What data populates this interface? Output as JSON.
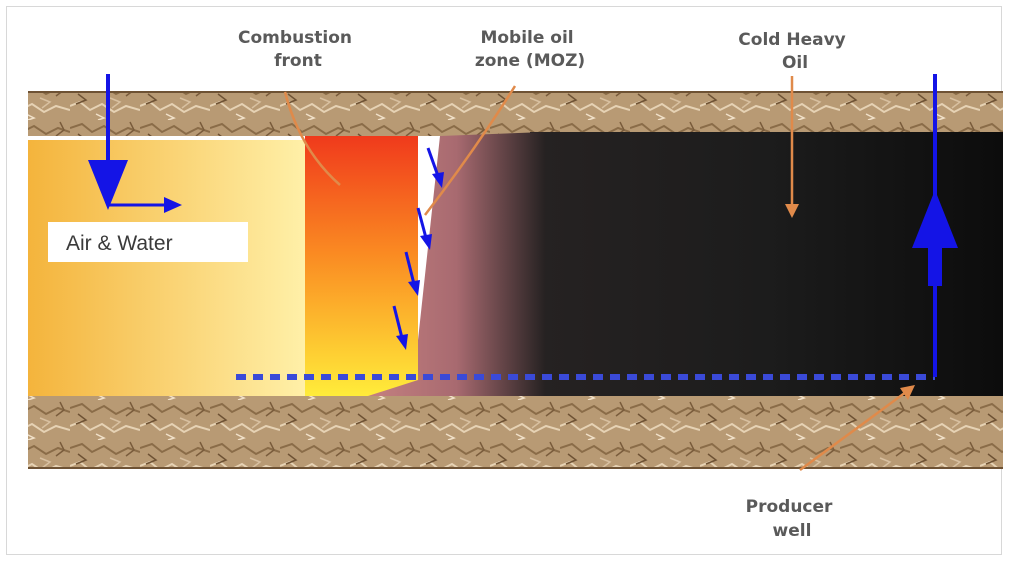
{
  "labels": {
    "combustion_front": [
      "Combustion",
      "front"
    ],
    "mobile_oil_zone": [
      "Mobile oil",
      "zone (MOZ)"
    ],
    "cold_heavy_oil": [
      "Cold Heavy",
      "Oil"
    ],
    "producer_well": [
      "Producer",
      "well"
    ],
    "air_water": "Air & Water"
  },
  "colors": {
    "rock": "#b89a74",
    "air_zone_left": "#f4b43c",
    "air_zone_right": "#fff0a8",
    "combustion_top": "#f03a1c",
    "combustion_bottom": "#ffe83a",
    "moz": "#c07878",
    "oil": "#1e1e1e",
    "arrow_blue": "#1414e6",
    "pointer_orange": "#e08a4a",
    "label_gray": "#5a5a5a"
  }
}
